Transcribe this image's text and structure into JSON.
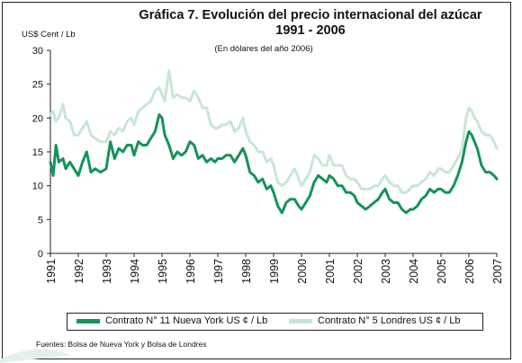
{
  "title_line1": "Gráfica 7. Evolución del precio internacional del azúcar",
  "title_line2": "1991 - 2006",
  "subtitle": "(En dólares del año 2006)",
  "ylabel": "US$ Cent / Lb",
  "source": "Fuentes: Bolsa de Nueva York y Bolsa de Londres",
  "chart_data": {
    "type": "line",
    "title": "Gráfica 7. Evolución del precio internacional del azúcar 1991 - 2006",
    "subtitle": "(En dólares del año 2006)",
    "ylabel": "US$ Cent / Lb",
    "xlabel": "",
    "ylim": [
      0,
      30
    ],
    "yticks": [
      0,
      5,
      10,
      15,
      20,
      25,
      30
    ],
    "xlim": [
      1991,
      2007
    ],
    "xticks": [
      1991,
      1992,
      1993,
      1994,
      1995,
      1996,
      1997,
      1998,
      1999,
      2000,
      2001,
      2002,
      2003,
      2004,
      2005,
      2006,
      2007
    ],
    "grid": false,
    "legend_position": "bottom",
    "series": [
      {
        "name": "Contrato N° 11 Nueva York US ¢ / Lb",
        "color": "#15935a",
        "x": [
          1991.0,
          1991.1,
          1991.2,
          1991.3,
          1991.45,
          1991.55,
          1991.7,
          1991.85,
          1992.0,
          1992.15,
          1992.3,
          1992.45,
          1992.6,
          1992.8,
          1993.0,
          1993.15,
          1993.3,
          1993.45,
          1993.6,
          1993.75,
          1993.9,
          1994.0,
          1994.15,
          1994.3,
          1994.45,
          1994.6,
          1994.75,
          1994.9,
          1995.0,
          1995.1,
          1995.25,
          1995.4,
          1995.55,
          1995.7,
          1995.85,
          1996.0,
          1996.15,
          1996.3,
          1996.45,
          1996.6,
          1996.75,
          1996.9,
          1997.0,
          1997.15,
          1997.3,
          1997.45,
          1997.6,
          1997.75,
          1997.9,
          1998.0,
          1998.15,
          1998.3,
          1998.45,
          1998.6,
          1998.75,
          1998.9,
          1999.0,
          1999.15,
          1999.3,
          1999.45,
          1999.6,
          1999.75,
          1999.9,
          2000.0,
          2000.15,
          2000.3,
          2000.45,
          2000.6,
          2000.75,
          2000.9,
          2001.0,
          2001.15,
          2001.3,
          2001.45,
          2001.6,
          2001.75,
          2001.9,
          2002.0,
          2002.15,
          2002.3,
          2002.45,
          2002.6,
          2002.75,
          2002.9,
          2003.0,
          2003.15,
          2003.3,
          2003.45,
          2003.6,
          2003.75,
          2003.9,
          2004.0,
          2004.15,
          2004.3,
          2004.45,
          2004.6,
          2004.75,
          2004.9,
          2005.0,
          2005.15,
          2005.3,
          2005.45,
          2005.6,
          2005.75,
          2005.9,
          2006.0,
          2006.1,
          2006.2,
          2006.3,
          2006.45,
          2006.6,
          2006.75,
          2006.9,
          2007.0
        ],
        "y": [
          13.5,
          11.5,
          16.0,
          13.5,
          14.0,
          12.5,
          13.5,
          12.5,
          11.5,
          13.5,
          15.0,
          12.0,
          12.5,
          12.0,
          12.5,
          16.5,
          14.0,
          15.5,
          15.0,
          16.0,
          16.0,
          14.5,
          16.5,
          16.0,
          16.0,
          17.0,
          18.0,
          20.5,
          20.0,
          17.5,
          16.0,
          14.0,
          15.0,
          14.5,
          15.0,
          16.5,
          16.0,
          14.0,
          14.5,
          13.5,
          14.0,
          13.5,
          14.0,
          14.0,
          14.5,
          14.5,
          13.5,
          14.5,
          15.5,
          14.5,
          12.0,
          11.5,
          10.5,
          11.0,
          9.5,
          10.0,
          9.0,
          7.0,
          6.0,
          7.5,
          8.0,
          8.0,
          7.0,
          6.5,
          7.5,
          8.5,
          10.5,
          11.5,
          11.0,
          10.5,
          11.5,
          11.0,
          10.0,
          10.0,
          9.0,
          9.0,
          8.5,
          7.5,
          7.0,
          6.5,
          7.0,
          7.5,
          8.0,
          9.0,
          9.5,
          8.0,
          7.5,
          7.5,
          6.5,
          6.0,
          6.5,
          6.5,
          7.0,
          8.0,
          8.5,
          9.5,
          9.0,
          9.5,
          9.5,
          9.0,
          9.0,
          10.0,
          11.5,
          13.5,
          16.5,
          18.0,
          17.5,
          16.5,
          15.5,
          13.0,
          12.0,
          12.0,
          11.5,
          11.0
        ]
      },
      {
        "name": "Contrato N° 5 Londres US ¢ / Lb",
        "color": "#c8e6d4",
        "x": [
          1991.0,
          1991.1,
          1991.2,
          1991.3,
          1991.45,
          1991.55,
          1991.7,
          1991.85,
          1992.0,
          1992.15,
          1992.3,
          1992.45,
          1992.6,
          1992.8,
          1993.0,
          1993.15,
          1993.3,
          1993.45,
          1993.6,
          1993.75,
          1993.9,
          1994.0,
          1994.15,
          1994.3,
          1994.45,
          1994.6,
          1994.75,
          1994.9,
          1995.0,
          1995.1,
          1995.25,
          1995.4,
          1995.55,
          1995.7,
          1995.85,
          1996.0,
          1996.15,
          1996.3,
          1996.45,
          1996.6,
          1996.75,
          1996.9,
          1997.0,
          1997.15,
          1997.3,
          1997.45,
          1997.6,
          1997.75,
          1997.9,
          1998.0,
          1998.15,
          1998.3,
          1998.45,
          1998.6,
          1998.75,
          1998.9,
          1999.0,
          1999.15,
          1999.3,
          1999.45,
          1999.6,
          1999.75,
          1999.9,
          2000.0,
          2000.15,
          2000.3,
          2000.45,
          2000.6,
          2000.75,
          2000.9,
          2001.0,
          2001.15,
          2001.3,
          2001.45,
          2001.6,
          2001.75,
          2001.9,
          2002.0,
          2002.15,
          2002.3,
          2002.45,
          2002.6,
          2002.75,
          2002.9,
          2003.0,
          2003.15,
          2003.3,
          2003.45,
          2003.6,
          2003.75,
          2003.9,
          2004.0,
          2004.15,
          2004.3,
          2004.45,
          2004.6,
          2004.75,
          2004.9,
          2005.0,
          2005.15,
          2005.3,
          2005.45,
          2005.6,
          2005.75,
          2005.9,
          2006.0,
          2006.1,
          2006.2,
          2006.3,
          2006.45,
          2006.6,
          2006.75,
          2006.9,
          2007.0
        ],
        "y": [
          20.5,
          21.0,
          19.5,
          20.0,
          22.0,
          20.0,
          19.5,
          17.5,
          17.5,
          18.5,
          19.5,
          17.5,
          17.0,
          16.5,
          16.5,
          18.0,
          17.5,
          18.5,
          18.0,
          19.5,
          20.0,
          19.0,
          21.0,
          21.5,
          22.0,
          22.5,
          24.0,
          24.5,
          23.5,
          22.5,
          27.0,
          23.0,
          23.5,
          23.0,
          23.0,
          22.5,
          24.0,
          23.0,
          21.5,
          21.5,
          19.0,
          18.5,
          18.5,
          19.0,
          19.0,
          19.5,
          18.0,
          18.5,
          20.0,
          18.0,
          16.5,
          16.0,
          15.0,
          15.0,
          13.5,
          14.0,
          13.0,
          10.5,
          10.0,
          10.5,
          11.5,
          12.5,
          11.0,
          10.0,
          11.0,
          12.0,
          14.5,
          14.0,
          13.0,
          13.0,
          14.5,
          13.0,
          13.0,
          13.0,
          11.5,
          11.0,
          11.0,
          10.5,
          9.5,
          9.5,
          9.5,
          10.0,
          10.0,
          11.0,
          11.5,
          10.5,
          10.0,
          10.0,
          9.0,
          9.0,
          9.5,
          10.0,
          10.0,
          10.5,
          11.0,
          12.0,
          11.5,
          12.5,
          12.5,
          12.0,
          12.0,
          13.0,
          14.0,
          15.5,
          20.0,
          21.5,
          21.0,
          20.0,
          19.5,
          18.0,
          17.5,
          17.5,
          16.5,
          15.5
        ]
      }
    ]
  }
}
